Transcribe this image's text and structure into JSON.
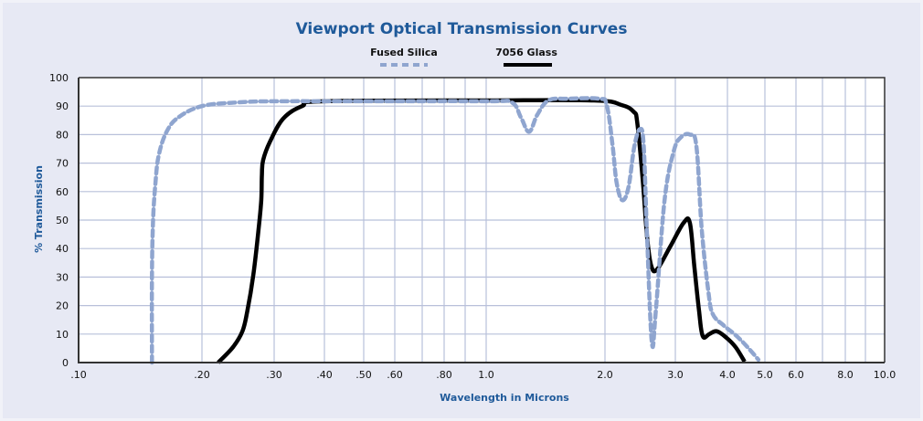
{
  "colors": {
    "background": "#e7e9f4",
    "plot_background": "#ffffff",
    "grid": "#b8c0da",
    "title": "#1f5a9a",
    "fused_silica": "#8fa5cf",
    "glass_7056": "#000000"
  },
  "chart_data": {
    "type": "line",
    "title": "Viewport Optical Transmission Curves",
    "xlabel": "Wavelength in Microns",
    "ylabel": "% Transmission",
    "xscale": "log",
    "xlim": [
      0.1,
      10.0
    ],
    "ylim": [
      0,
      100
    ],
    "grid": true,
    "legend_position": "top-center",
    "x_ticks": [
      {
        "value": 0.1,
        "label": ".10"
      },
      {
        "value": 0.2,
        "label": ".20"
      },
      {
        "value": 0.3,
        "label": ".30"
      },
      {
        "value": 0.4,
        "label": ".40"
      },
      {
        "value": 0.5,
        "label": ".50"
      },
      {
        "value": 0.6,
        "label": ".60"
      },
      {
        "value": 0.8,
        "label": ".80"
      },
      {
        "value": 1.0,
        "label": "1.0"
      },
      {
        "value": 2.0,
        "label": "2.0"
      },
      {
        "value": 3.0,
        "label": "3.0"
      },
      {
        "value": 4.0,
        "label": "4.0"
      },
      {
        "value": 5.0,
        "label": "5.0"
      },
      {
        "value": 6.0,
        "label": "6.0"
      },
      {
        "value": 8.0,
        "label": "8.0"
      },
      {
        "value": 10.0,
        "label": "10.0"
      }
    ],
    "x_gridlines": [
      0.2,
      0.3,
      0.4,
      0.5,
      0.6,
      0.7,
      0.8,
      0.9,
      1.0,
      2.0,
      3.0,
      4.0,
      5.0,
      6.0,
      7.0,
      8.0,
      9.0
    ],
    "y_ticks": [
      {
        "value": 0,
        "label": "0"
      },
      {
        "value": 10,
        "label": "10"
      },
      {
        "value": 20,
        "label": "20"
      },
      {
        "value": 30,
        "label": "30"
      },
      {
        "value": 40,
        "label": "40"
      },
      {
        "value": 50,
        "label": "50"
      },
      {
        "value": 60,
        "label": "60"
      },
      {
        "value": 70,
        "label": "70"
      },
      {
        "value": 80,
        "label": "80"
      },
      {
        "value": 90,
        "label": "90"
      },
      {
        "value": 100,
        "label": "100"
      }
    ],
    "series": [
      {
        "name": "Fused Silica",
        "style": "dashed",
        "x": [
          0.151,
          0.151,
          0.152,
          0.154,
          0.157,
          0.164,
          0.175,
          0.2,
          0.245,
          0.3,
          0.5,
          1.0,
          1.16,
          1.225,
          1.285,
          1.348,
          1.437,
          1.6,
          1.93,
          2.02,
          2.09,
          2.14,
          2.21,
          2.29,
          2.37,
          2.45,
          2.5,
          2.55,
          2.62,
          2.68,
          2.82,
          2.97,
          3.09,
          3.25,
          3.37,
          3.47,
          3.6,
          3.69,
          3.92,
          4.2,
          4.51,
          4.81
        ],
        "y": [
          0,
          31,
          50,
          63,
          73,
          81,
          86,
          90,
          91.3,
          91.7,
          91.7,
          91.7,
          91.3,
          86,
          81,
          87,
          92,
          92.6,
          92.6,
          90.4,
          76,
          63,
          57,
          61.5,
          76,
          82,
          76,
          44,
          7,
          18,
          57,
          74,
          79,
          80,
          76,
          47,
          25,
          17,
          13,
          9.6,
          5.4,
          1
        ]
      },
      {
        "name": "7056 Glass",
        "style": "solid",
        "x": [
          0.219,
          0.238,
          0.251,
          0.258,
          0.267,
          0.275,
          0.279,
          0.28,
          0.282,
          0.293,
          0.316,
          0.352,
          0.4,
          1.0,
          1.875,
          2.2,
          2.36,
          2.41,
          2.49,
          2.55,
          2.61,
          2.7,
          2.92,
          3.14,
          3.25,
          3.33,
          3.42,
          3.49,
          3.62,
          3.77,
          3.98,
          4.2,
          4.43
        ],
        "y": [
          0,
          5.4,
          11,
          18,
          31,
          47,
          57,
          66,
          71,
          77.5,
          85.6,
          90,
          91.7,
          92,
          92,
          90.4,
          88,
          84,
          63,
          44,
          34,
          32.7,
          41,
          49,
          49,
          34,
          18,
          9.3,
          10,
          11,
          8.7,
          5.4,
          0.3
        ]
      }
    ]
  }
}
